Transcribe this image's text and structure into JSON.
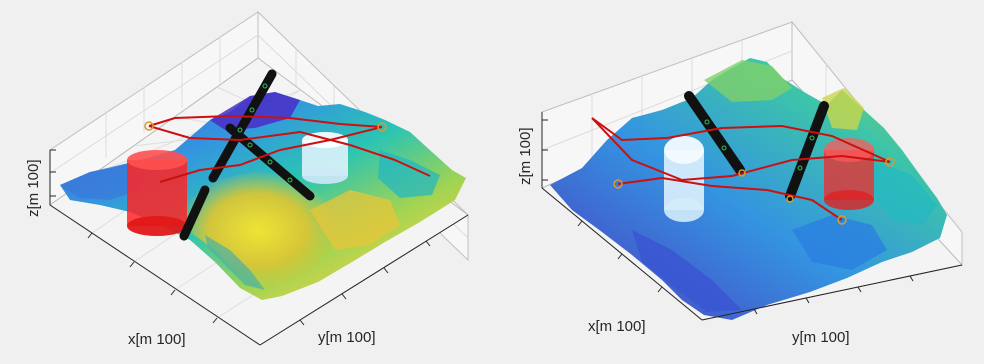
{
  "chart_data": [
    {
      "type": "surface",
      "xlabel": "x[m 100]",
      "ylabel": "y[m 100]",
      "zlabel": "z[m 100]",
      "grid": true,
      "colormap": "parula",
      "colors": {
        "path": "#cc1010",
        "waypoint": "#d79b2e",
        "threat_red": "#ff2020",
        "threat_white": "#e8f6ff",
        "rod": "#111111",
        "rod_marker": "#2cc25a"
      },
      "objects": [
        {
          "kind": "cylinder",
          "color": "red"
        },
        {
          "kind": "cylinder",
          "color": "white"
        },
        {
          "kind": "rod",
          "color": "black"
        },
        {
          "kind": "rod",
          "color": "black"
        }
      ],
      "path_count": 3
    },
    {
      "type": "surface",
      "xlabel": "x[m 100]",
      "ylabel": "y[m 100]",
      "zlabel": "z[m 100]",
      "grid": true,
      "colormap": "parula",
      "colors": {
        "path": "#cc1010",
        "waypoint": "#d79b2e",
        "threat_red": "#ff2020",
        "threat_white": "#e8f6ff",
        "rod": "#111111",
        "rod_marker": "#2cc25a"
      },
      "objects": [
        {
          "kind": "cylinder",
          "color": "white"
        },
        {
          "kind": "cylinder",
          "color": "red"
        },
        {
          "kind": "rod",
          "color": "black"
        },
        {
          "kind": "rod",
          "color": "black"
        }
      ],
      "path_count": 3
    }
  ]
}
